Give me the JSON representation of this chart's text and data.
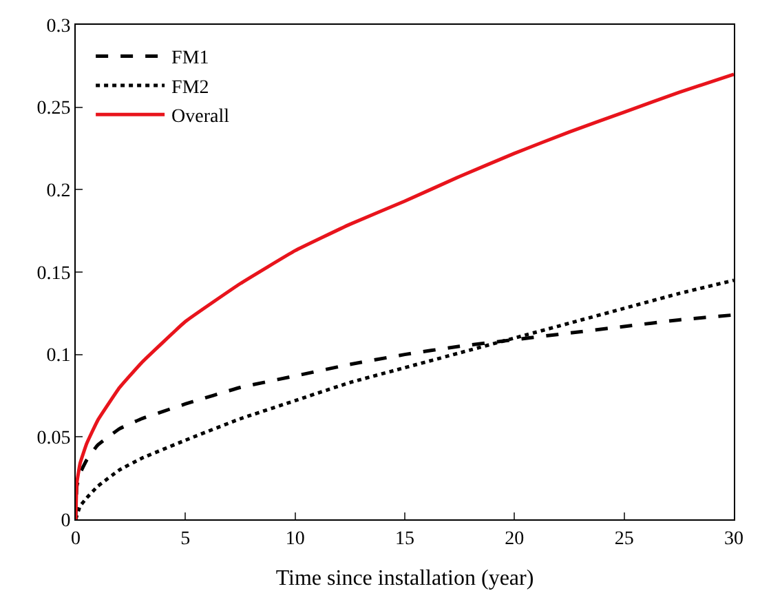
{
  "chart_data": {
    "type": "line",
    "xlabel": "Time since installation (year)",
    "xlim": [
      0,
      30
    ],
    "ylim": [
      0,
      0.3
    ],
    "xticks": [
      0,
      5,
      10,
      15,
      20,
      25,
      30
    ],
    "yticks": [
      0,
      0.05,
      0.1,
      0.15,
      0.2,
      0.25,
      0.3
    ],
    "legend": "top left",
    "marker": "none",
    "series": [
      {
        "name": "FM1",
        "color": "#000000",
        "line_style": "dashed",
        "x": [
          0,
          0.05,
          0.2,
          0.5,
          1,
          2,
          3,
          5,
          7.5,
          10,
          12.5,
          15,
          17.5,
          20,
          22.5,
          25,
          27.5,
          30
        ],
        "values": [
          0,
          0.02,
          0.028,
          0.036,
          0.045,
          0.055,
          0.061,
          0.07,
          0.08,
          0.087,
          0.094,
          0.1,
          0.105,
          0.109,
          0.113,
          0.117,
          0.121,
          0.124
        ]
      },
      {
        "name": "FM2",
        "color": "#000000",
        "line_style": "dotted",
        "x": [
          0,
          0.2,
          0.5,
          1,
          2,
          3,
          5,
          7.5,
          10,
          12.5,
          15,
          17.5,
          20,
          22.5,
          25,
          27.5,
          30
        ],
        "values": [
          0,
          0.008,
          0.013,
          0.02,
          0.03,
          0.037,
          0.048,
          0.061,
          0.072,
          0.083,
          0.092,
          0.101,
          0.11,
          0.119,
          0.128,
          0.137,
          0.145
        ]
      },
      {
        "name": "Overall",
        "color": "#e8141c",
        "line_style": "solid",
        "x": [
          0,
          0.05,
          0.2,
          0.5,
          1,
          2,
          3,
          5,
          7.5,
          10,
          12.5,
          15,
          17.5,
          20,
          22.5,
          25,
          27.5,
          30
        ],
        "values": [
          0,
          0.022,
          0.034,
          0.046,
          0.06,
          0.08,
          0.095,
          0.12,
          0.143,
          0.163,
          0.179,
          0.193,
          0.208,
          0.222,
          0.235,
          0.247,
          0.259,
          0.27
        ]
      }
    ]
  }
}
